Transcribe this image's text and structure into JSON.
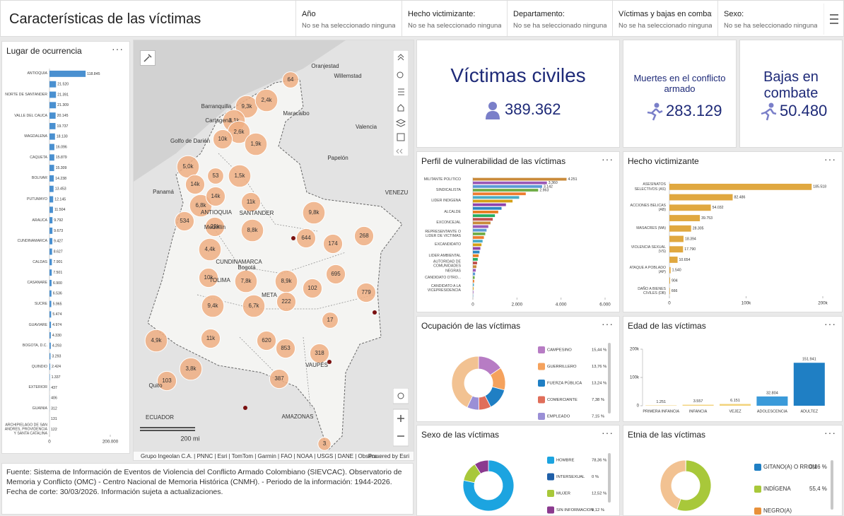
{
  "header": {
    "title": "Características de las víctimas",
    "filters": [
      {
        "label": "Año",
        "value": "No se ha seleccionado ninguna cate..."
      },
      {
        "label": "Hecho victimizante:",
        "value": "No se ha seleccionado ninguna cate..."
      },
      {
        "label": "Departamento:",
        "value": "No se ha seleccionado ninguna cate..."
      },
      {
        "label": "Víctimas y bajas en combate:",
        "value": "No se ha seleccionado ninguna cate..."
      },
      {
        "label": "Sexo:",
        "value": "No se ha seleccionado ninguna cate..."
      }
    ]
  },
  "kpis": [
    {
      "title": "Víctimas civiles",
      "value": "389.362"
    },
    {
      "title": "Muertes en el conflicto armado",
      "value": "283.129"
    },
    {
      "title": "Bajas en combate",
      "value": "50.480"
    }
  ],
  "map": {
    "places": [
      "Oranjestad",
      "Willemstad",
      "Maracaibo",
      "Valencia",
      "Golfo de Darién",
      "Papelón",
      "VENEZU",
      "Barranquilla",
      "Cartagena",
      "Panamá",
      "ANTIOQUIA",
      "SANTANDER",
      "Medellín",
      "CUNDINAMARCA",
      "Bogotá",
      "TOLIMA",
      "META",
      "VAUPÉS",
      "AMAZONAS",
      "Quito",
      "ECUADOR"
    ],
    "clusters": [
      "64",
      "9,3k",
      "2,4k",
      "3,1k",
      "2,6k",
      "10k",
      "1,9k",
      "5,0k",
      "53",
      "14k",
      "1,5k",
      "6,8k",
      "14k",
      "11k",
      "9,8k",
      "534",
      "22k",
      "8,8k",
      "644",
      "268",
      "174",
      "4,4k",
      "10k",
      "7,8k",
      "695",
      "8,9k",
      "9,4k",
      "102",
      "779",
      "6,7k",
      "222",
      "17",
      "11k",
      "4,9k",
      "620",
      "853",
      "318",
      "3,8k",
      "387",
      "103",
      "3"
    ],
    "scale_label": "200 mi",
    "attribution": "Grupo Ingeolan C.A. | PNNC | Esri | TomTom | Garmin | FAO | NOAA | USGS | DANE | Observ...",
    "powered_by": "Powered by Esri"
  },
  "footer": {
    "text": "Fuente: Sistema de Información de Eventos de Violencia del Conflicto Armado Colombiano (SIEVCAC). Observatorio de Memoria y Conflicto (OMC) - Centro Nacional de Memoria Histórica (CNMH). - Periodo de la información: 1944-2026. Fecha de corte: 30/03/2026. Información sujeta a actualizaciones."
  },
  "chart_data": [
    {
      "type": "hbar",
      "title": "Lugar de ocurrencia",
      "color": "#4a90d0",
      "categories": [
        "ANTIOQUIA",
        null,
        "NORTE DE SANTANDER",
        null,
        "VALLE DEL CAUCA",
        null,
        "MAGDALENA",
        null,
        "CAQUETA",
        null,
        "BOLIVAR",
        null,
        "PUTUMAYO",
        null,
        "ARAUCA",
        null,
        "CUNDINAMARCA",
        null,
        "CALDAS",
        null,
        "CASANARE",
        null,
        "SUCRE",
        null,
        "GUAVIARE",
        null,
        "BOGOTA, D.C.",
        null,
        "QUINDIO",
        null,
        "EXTERIOR",
        null,
        "GUAINIA",
        null,
        "ARCHIPIELAGO DE SAN ANDRES, PROVIDENCIA Y SANTA CATALINA"
      ],
      "values": [
        118845,
        21520,
        21391,
        21309,
        20145,
        19737,
        18130,
        16096,
        15879,
        15309,
        14238,
        13453,
        12145,
        11504,
        9792,
        9673,
        9427,
        8627,
        7901,
        7501,
        6900,
        6536,
        5965,
        5474,
        4974,
        4330,
        4293,
        3293,
        2424,
        1337,
        437,
        406,
        312,
        131,
        122
      ],
      "value_labels": [
        "118.845",
        "21.520",
        "21.391",
        "21.309",
        "20.145",
        "19.737",
        "18.130",
        "16.096",
        "15.879",
        "15.309",
        "14.238",
        "13.453",
        "12.145",
        "11.504",
        "9.792",
        "9.673",
        "9.427",
        "8.627",
        "7.901",
        "7.501",
        "6.900",
        "6.536",
        "5.965",
        "5.474",
        "4.974",
        "4.330",
        "4.293",
        "3.293",
        "2.424",
        "1.337",
        "437",
        "406",
        "312",
        "131",
        "122"
      ],
      "xlim": [
        0,
        200000
      ],
      "xticks": [
        0,
        {
          "value": 200000,
          "label": "200.000"
        }
      ]
    },
    {
      "type": "hbar",
      "title": "Perfil de vulnerabilidad de las víctimas",
      "colors": [
        "#c98a3a",
        "#9b59b6",
        "#5b9bd5",
        "#70ad47",
        "#ed7d31",
        "#4bacc6",
        "#d4a017",
        "#8e44ad",
        "#2e86c1",
        "#e67e22",
        "#27ae60",
        "#c0504d"
      ],
      "categories": [
        "MILITANTE POLITICO",
        null,
        null,
        "SINDICALISTA",
        null,
        null,
        "LIDER INDIGENA",
        null,
        null,
        "ALCALDE",
        null,
        null,
        "EXCONCEJAL",
        null,
        null,
        "REPRESENTANTE O LIDER DE VICTIMAS",
        null,
        null,
        "EXCANDIDATO",
        null,
        null,
        "LIDER AMBIENTAL",
        null,
        null,
        "AUTORIDAD DE COMUNIDADES NEGRAS",
        null,
        null,
        "CANDIDATO OTRO...",
        null,
        null,
        "CANDIDATO A LA VICEPRESIDENCIA",
        null,
        null
      ],
      "values": [
        4251,
        3360,
        3142,
        2963,
        2400,
        2100,
        1800,
        1500,
        1300,
        1150,
        1000,
        900,
        800,
        700,
        620,
        560,
        500,
        440,
        390,
        340,
        300,
        260,
        220,
        190,
        160,
        130,
        100,
        80,
        60,
        45,
        30,
        20,
        10
      ],
      "value_labels": [
        "4.251",
        "3.360",
        "3.142",
        "2.963",
        null,
        null,
        null,
        null,
        null,
        null,
        null,
        null,
        null,
        null,
        null,
        null,
        null,
        null,
        null,
        null,
        null,
        null,
        null,
        null,
        null,
        null,
        null,
        null,
        null,
        null,
        null,
        null,
        null
      ],
      "xlim": [
        0,
        6000
      ],
      "xticks": [
        0,
        {
          "value": 2000,
          "label": "2.000"
        },
        {
          "value": 4000,
          "label": "4.000"
        },
        {
          "value": 6000,
          "label": "6.000"
        }
      ]
    },
    {
      "type": "hbar",
      "title": "Hecho victimizante",
      "color": "#e0a840",
      "categories": [
        "ASESINATOS SELECTIVOS (AS)",
        null,
        "ACCIONES BELICAS (AB)",
        null,
        "MASACRES (MA)",
        null,
        "VIOLENCIA SEXUAL (VS)",
        null,
        "ATAQUE A POBLADO (AP)",
        null,
        "DAÑO A BIENES CIVILES (DB)"
      ],
      "values": [
        185518,
        82486,
        54032,
        39753,
        28305,
        18394,
        17790,
        10654,
        1540,
        904,
        666
      ],
      "value_labels": [
        "185.518",
        "82.486",
        "54.032",
        "39.753",
        "28.305",
        "18.394",
        "17.790",
        "10.654",
        "1.540",
        "904",
        "666"
      ],
      "xlim": [
        0,
        200000
      ],
      "xticks": [
        0,
        {
          "value": 100000,
          "label": "100k"
        },
        {
          "value": 200000,
          "label": "200k"
        }
      ]
    },
    {
      "type": "pie",
      "title": "Ocupación de las víctimas",
      "categories": [
        "CAMPESINO",
        "GUERRILLERO",
        "FUERZA PÚBLICA",
        "COMERCIANTE",
        "EMPLEADO"
      ],
      "values": [
        15.44,
        13.76,
        13.24,
        7.38,
        7.15
      ],
      "value_labels": [
        "15,44 %",
        "13,76 %",
        "13,24 %",
        "7,38 %",
        "7,15 %"
      ],
      "colors": [
        "#b77cc4",
        "#f5a25d",
        "#1f7fc4",
        "#e06e5a",
        "#9a8fd6"
      ]
    },
    {
      "type": "vbar",
      "title": "Edad de las víctimas",
      "categories": [
        "PRIMERA INFANCIA",
        "INFANCIA",
        "VEJEZ",
        "ADOLESCENCIA",
        "ADULTEZ"
      ],
      "values": [
        1251,
        3557,
        6151,
        32804,
        151941
      ],
      "value_labels": [
        "1.251",
        "3.557",
        "6.151",
        "32.804",
        "151.941"
      ],
      "colors": [
        "#f2d27a",
        "#f2d27a",
        "#f2d27a",
        "#3a9ad9",
        "#1f7fc4"
      ],
      "ylim": [
        0,
        200000
      ],
      "yticks": [
        0,
        {
          "value": 100000,
          "label": "100k"
        },
        {
          "value": 200000,
          "label": "200k"
        }
      ]
    },
    {
      "type": "pie",
      "title": "Sexo de las víctimas",
      "categories": [
        "HOMBRE",
        "INTERSEXUAL",
        "MUJER",
        "SIN INFORMACION"
      ],
      "values": [
        78.36,
        0,
        12.52,
        9.12
      ],
      "value_labels": [
        "78,36 %",
        "0 %",
        "12,52 %",
        "9,12 %"
      ],
      "colors": [
        "#1ca4e0",
        "#1f5fa8",
        "#a8c83a",
        "#8b3a8f"
      ]
    },
    {
      "type": "pie",
      "title": "Etnia de las víctimas",
      "categories": [
        "GITANO(A) O RROM",
        "INDÍGENA",
        "NEGRO(A)"
      ],
      "values": [
        0.16,
        55.4,
        null
      ],
      "value_labels": [
        "0,16 %",
        "55,4 %",
        null
      ],
      "colors": [
        "#1f7fc4",
        "#a8c83a",
        "#e8913a"
      ]
    }
  ]
}
